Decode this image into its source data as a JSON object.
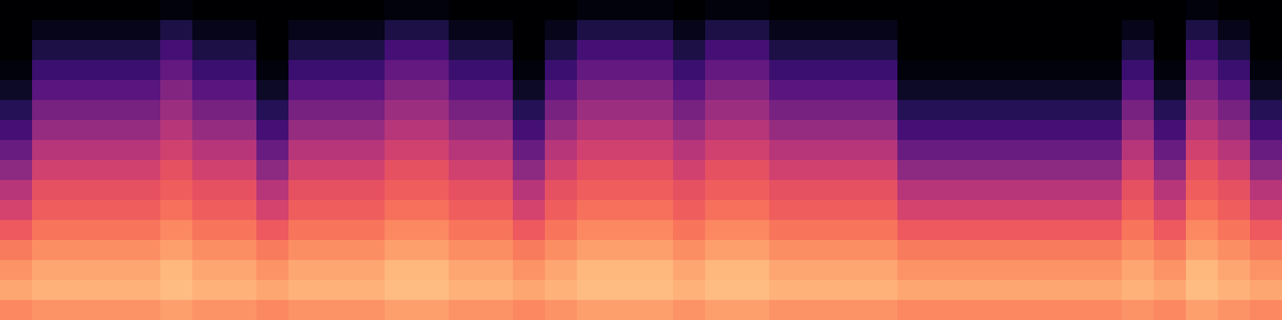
{
  "chart_data": {
    "type": "heatmap",
    "color": "magma",
    "tick_labels": false,
    "color_range": [
      -80,
      0
    ],
    "cells": [
      [
        -80,
        -80,
        -80,
        -80,
        -80,
        -78,
        -80,
        -80,
        -80,
        -80,
        -80,
        -80,
        -78,
        -78,
        -80,
        -80,
        -80,
        -80,
        -78,
        -78,
        -78,
        -80,
        -78,
        -78,
        -80,
        -80,
        -80,
        -80,
        -80,
        -80,
        -80,
        -80,
        -80,
        -80,
        -80,
        -80,
        -80,
        -78,
        -80,
        -80
      ],
      [
        -80,
        -76,
        -76,
        -76,
        -76,
        -70,
        -76,
        -76,
        -80,
        -76,
        -76,
        -76,
        -70,
        -70,
        -76,
        -76,
        -80,
        -76,
        -70,
        -70,
        -70,
        -76,
        -70,
        -70,
        -76,
        -76,
        -76,
        -76,
        -80,
        -80,
        -80,
        -80,
        -80,
        -80,
        -80,
        -76,
        -80,
        -70,
        -76,
        -80
      ],
      [
        -80,
        -70,
        -70,
        -70,
        -70,
        -62,
        -70,
        -70,
        -80,
        -70,
        -70,
        -70,
        -62,
        -62,
        -70,
        -70,
        -80,
        -70,
        -62,
        -62,
        -62,
        -70,
        -62,
        -62,
        -70,
        -70,
        -70,
        -70,
        -80,
        -80,
        -80,
        -80,
        -80,
        -80,
        -80,
        -70,
        -80,
        -62,
        -70,
        -80
      ],
      [
        -78,
        -64,
        -64,
        -64,
        -64,
        -56,
        -64,
        -64,
        -78,
        -64,
        -64,
        -64,
        -56,
        -56,
        -64,
        -64,
        -78,
        -64,
        -56,
        -56,
        -56,
        -64,
        -56,
        -56,
        -64,
        -64,
        -64,
        -64,
        -78,
        -78,
        -78,
        -78,
        -78,
        -78,
        -78,
        -64,
        -78,
        -56,
        -64,
        -78
      ],
      [
        -74,
        -58,
        -58,
        -58,
        -58,
        -50,
        -58,
        -58,
        -74,
        -58,
        -58,
        -58,
        -50,
        -50,
        -58,
        -58,
        -74,
        -58,
        -50,
        -50,
        -50,
        -58,
        -50,
        -50,
        -58,
        -58,
        -58,
        -58,
        -74,
        -74,
        -74,
        -74,
        -74,
        -74,
        -74,
        -58,
        -74,
        -50,
        -58,
        -74
      ],
      [
        -68,
        -52,
        -52,
        -52,
        -52,
        -45,
        -52,
        -52,
        -68,
        -52,
        -52,
        -52,
        -45,
        -45,
        -52,
        -52,
        -68,
        -52,
        -45,
        -45,
        -45,
        -52,
        -45,
        -45,
        -52,
        -52,
        -52,
        -52,
        -68,
        -68,
        -68,
        -68,
        -68,
        -68,
        -68,
        -52,
        -68,
        -45,
        -52,
        -68
      ],
      [
        -62,
        -46,
        -46,
        -46,
        -46,
        -40,
        -46,
        -46,
        -62,
        -46,
        -46,
        -46,
        -40,
        -40,
        -46,
        -46,
        -62,
        -46,
        -40,
        -40,
        -40,
        -46,
        -40,
        -40,
        -46,
        -46,
        -46,
        -46,
        -62,
        -62,
        -62,
        -62,
        -62,
        -62,
        -62,
        -46,
        -62,
        -40,
        -46,
        -62
      ],
      [
        -55,
        -40,
        -40,
        -40,
        -40,
        -35,
        -40,
        -40,
        -55,
        -40,
        -40,
        -40,
        -35,
        -35,
        -40,
        -40,
        -55,
        -40,
        -35,
        -35,
        -35,
        -40,
        -35,
        -35,
        -40,
        -40,
        -40,
        -40,
        -55,
        -55,
        -55,
        -55,
        -55,
        -55,
        -55,
        -40,
        -55,
        -35,
        -40,
        -55
      ],
      [
        -48,
        -35,
        -35,
        -35,
        -35,
        -30,
        -35,
        -35,
        -48,
        -35,
        -35,
        -35,
        -30,
        -30,
        -35,
        -35,
        -48,
        -35,
        -30,
        -30,
        -30,
        -35,
        -30,
        -30,
        -35,
        -35,
        -35,
        -35,
        -48,
        -48,
        -48,
        -48,
        -48,
        -48,
        -48,
        -35,
        -48,
        -30,
        -35,
        -48
      ],
      [
        -40,
        -30,
        -30,
        -30,
        -30,
        -27,
        -30,
        -30,
        -40,
        -30,
        -30,
        -30,
        -27,
        -27,
        -30,
        -30,
        -40,
        -30,
        -27,
        -27,
        -27,
        -30,
        -27,
        -27,
        -30,
        -30,
        -30,
        -30,
        -40,
        -40,
        -40,
        -40,
        -40,
        -40,
        -40,
        -30,
        -40,
        -27,
        -30,
        -40
      ],
      [
        -34,
        -27,
        -27,
        -27,
        -27,
        -24,
        -27,
        -27,
        -34,
        -27,
        -27,
        -27,
        -24,
        -24,
        -27,
        -27,
        -34,
        -27,
        -24,
        -24,
        -24,
        -27,
        -24,
        -24,
        -27,
        -27,
        -27,
        -27,
        -34,
        -34,
        -34,
        -34,
        -34,
        -34,
        -34,
        -27,
        -34,
        -24,
        -27,
        -34
      ],
      [
        -28,
        -23,
        -23,
        -23,
        -23,
        -20,
        -23,
        -23,
        -28,
        -23,
        -23,
        -23,
        -20,
        -20,
        -23,
        -23,
        -28,
        -23,
        -20,
        -20,
        -20,
        -23,
        -20,
        -20,
        -23,
        -23,
        -23,
        -23,
        -28,
        -28,
        -28,
        -28,
        -28,
        -28,
        -28,
        -23,
        -28,
        -20,
        -23,
        -28
      ],
      [
        -22,
        -19,
        -19,
        -19,
        -19,
        -16,
        -19,
        -19,
        -22,
        -19,
        -19,
        -19,
        -16,
        -16,
        -19,
        -19,
        -22,
        -19,
        -16,
        -16,
        -16,
        -19,
        -16,
        -16,
        -19,
        -19,
        -19,
        -19,
        -22,
        -22,
        -22,
        -22,
        -22,
        -22,
        -22,
        -19,
        -22,
        -16,
        -19,
        -22
      ],
      [
        -18,
        -15,
        -15,
        -15,
        -15,
        -12,
        -15,
        -15,
        -18,
        -15,
        -15,
        -15,
        -12,
        -12,
        -15,
        -15,
        -18,
        -15,
        -12,
        -12,
        -12,
        -15,
        -12,
        -12,
        -15,
        -15,
        -15,
        -15,
        -18,
        -18,
        -18,
        -18,
        -18,
        -18,
        -18,
        -15,
        -18,
        -12,
        -15,
        -18
      ],
      [
        -15,
        -13,
        -13,
        -13,
        -13,
        -11,
        -13,
        -13,
        -15,
        -13,
        -13,
        -13,
        -11,
        -11,
        -13,
        -13,
        -15,
        -13,
        -11,
        -11,
        -11,
        -13,
        -11,
        -11,
        -13,
        -13,
        -13,
        -13,
        -15,
        -15,
        -15,
        -15,
        -15,
        -15,
        -15,
        -13,
        -15,
        -11,
        -13,
        -15
      ],
      [
        -20,
        -18,
        -18,
        -18,
        -18,
        -16,
        -18,
        -18,
        -20,
        -18,
        -18,
        -18,
        -16,
        -16,
        -18,
        -18,
        -20,
        -18,
        -16,
        -16,
        -16,
        -18,
        -16,
        -16,
        -18,
        -18,
        -18,
        -18,
        -20,
        -20,
        -20,
        -20,
        -20,
        -20,
        -20,
        -18,
        -20,
        -16,
        -18,
        -20
      ]
    ]
  }
}
